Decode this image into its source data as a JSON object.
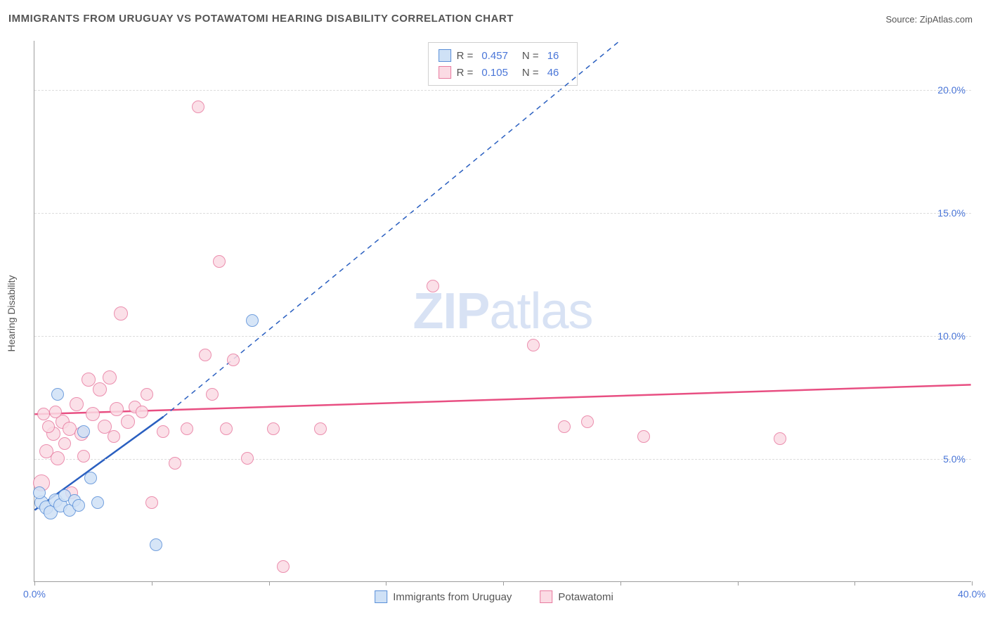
{
  "title": "IMMIGRANTS FROM URUGUAY VS POTAWATOMI HEARING DISABILITY CORRELATION CHART",
  "source_prefix": "Source: ",
  "source": "ZipAtlas.com",
  "watermark_bold": "ZIP",
  "watermark_rest": "atlas",
  "ylabel": "Hearing Disability",
  "chart": {
    "xlim": [
      0,
      40
    ],
    "ylim": [
      0,
      22
    ],
    "xtick_positions": [
      0,
      5,
      10,
      15,
      20,
      25,
      30,
      35,
      40
    ],
    "xtick_labels_shown": {
      "0": "0.0%",
      "40": "40.0%"
    },
    "ytick_positions": [
      5,
      10,
      15,
      20
    ],
    "ytick_labels": [
      "5.0%",
      "10.0%",
      "15.0%",
      "20.0%"
    ],
    "background_color": "#ffffff",
    "grid_color": "#dcdcdc",
    "axis_color": "#9d9d9d",
    "label_color": "#4a76d8",
    "text_color": "#555555",
    "title_fontsize": 15,
    "label_fontsize": 14,
    "series": {
      "uruguay": {
        "label": "Immigrants from Uruguay",
        "fill": "#cfe1f6",
        "stroke": "#5a8fd8",
        "line_color": "#2a5fc0",
        "R": "0.457",
        "N": "16",
        "trend_solid": {
          "x1": 0,
          "y1": 2.9,
          "x2": 5.5,
          "y2": 6.7
        },
        "trend_dashed": {
          "x1": 5.5,
          "y1": 6.7,
          "x2": 25,
          "y2": 22
        },
        "points": [
          {
            "x": 0.3,
            "y": 3.2,
            "r": 10
          },
          {
            "x": 0.5,
            "y": 3.0,
            "r": 10
          },
          {
            "x": 0.7,
            "y": 2.8,
            "r": 10
          },
          {
            "x": 0.9,
            "y": 3.3,
            "r": 10
          },
          {
            "x": 1.1,
            "y": 3.1,
            "r": 10
          },
          {
            "x": 1.3,
            "y": 3.5,
            "r": 9
          },
          {
            "x": 1.5,
            "y": 2.9,
            "r": 9
          },
          {
            "x": 1.7,
            "y": 3.3,
            "r": 9
          },
          {
            "x": 1.9,
            "y": 3.1,
            "r": 9
          },
          {
            "x": 1.0,
            "y": 7.6,
            "r": 9
          },
          {
            "x": 2.1,
            "y": 6.1,
            "r": 9
          },
          {
            "x": 2.4,
            "y": 4.2,
            "r": 9
          },
          {
            "x": 2.7,
            "y": 3.2,
            "r": 9
          },
          {
            "x": 9.3,
            "y": 10.6,
            "r": 9
          },
          {
            "x": 5.2,
            "y": 1.5,
            "r": 9
          },
          {
            "x": 0.2,
            "y": 3.6,
            "r": 9
          }
        ]
      },
      "potawatomi": {
        "label": "Potawatomi",
        "fill": "#fbdbe4",
        "stroke": "#e87ba0",
        "line_color": "#e84f82",
        "R": "0.105",
        "N": "46",
        "trend_solid": {
          "x1": 0,
          "y1": 6.8,
          "x2": 40,
          "y2": 8.0
        },
        "points": [
          {
            "x": 0.3,
            "y": 4.0,
            "r": 12
          },
          {
            "x": 0.5,
            "y": 5.3,
            "r": 10
          },
          {
            "x": 0.8,
            "y": 6.0,
            "r": 10
          },
          {
            "x": 1.0,
            "y": 5.0,
            "r": 10
          },
          {
            "x": 1.2,
            "y": 6.5,
            "r": 10
          },
          {
            "x": 1.5,
            "y": 6.2,
            "r": 10
          },
          {
            "x": 1.8,
            "y": 7.2,
            "r": 10
          },
          {
            "x": 2.0,
            "y": 6.0,
            "r": 10
          },
          {
            "x": 2.3,
            "y": 8.2,
            "r": 10
          },
          {
            "x": 2.5,
            "y": 6.8,
            "r": 10
          },
          {
            "x": 2.8,
            "y": 7.8,
            "r": 10
          },
          {
            "x": 3.0,
            "y": 6.3,
            "r": 10
          },
          {
            "x": 3.2,
            "y": 8.3,
            "r": 10
          },
          {
            "x": 3.5,
            "y": 7.0,
            "r": 10
          },
          {
            "x": 3.7,
            "y": 10.9,
            "r": 10
          },
          {
            "x": 4.0,
            "y": 6.5,
            "r": 10
          },
          {
            "x": 4.3,
            "y": 7.1,
            "r": 9
          },
          {
            "x": 4.8,
            "y": 7.6,
            "r": 9
          },
          {
            "x": 5.0,
            "y": 3.2,
            "r": 9
          },
          {
            "x": 5.5,
            "y": 6.1,
            "r": 9
          },
          {
            "x": 6.0,
            "y": 4.8,
            "r": 9
          },
          {
            "x": 6.5,
            "y": 6.2,
            "r": 9
          },
          {
            "x": 7.0,
            "y": 19.3,
            "r": 9
          },
          {
            "x": 7.3,
            "y": 9.2,
            "r": 9
          },
          {
            "x": 7.6,
            "y": 7.6,
            "r": 9
          },
          {
            "x": 7.9,
            "y": 13.0,
            "r": 9
          },
          {
            "x": 8.2,
            "y": 6.2,
            "r": 9
          },
          {
            "x": 8.5,
            "y": 9.0,
            "r": 9
          },
          {
            "x": 9.1,
            "y": 5.0,
            "r": 9
          },
          {
            "x": 10.2,
            "y": 6.2,
            "r": 9
          },
          {
            "x": 10.6,
            "y": 0.6,
            "r": 9
          },
          {
            "x": 12.2,
            "y": 6.2,
            "r": 9
          },
          {
            "x": 17.0,
            "y": 12.0,
            "r": 9
          },
          {
            "x": 21.3,
            "y": 9.6,
            "r": 9
          },
          {
            "x": 22.6,
            "y": 6.3,
            "r": 9
          },
          {
            "x": 23.6,
            "y": 6.5,
            "r": 9
          },
          {
            "x": 26.0,
            "y": 5.9,
            "r": 9
          },
          {
            "x": 31.8,
            "y": 5.8,
            "r": 9
          },
          {
            "x": 0.4,
            "y": 6.8,
            "r": 9
          },
          {
            "x": 0.6,
            "y": 6.3,
            "r": 9
          },
          {
            "x": 0.9,
            "y": 6.9,
            "r": 9
          },
          {
            "x": 1.3,
            "y": 5.6,
            "r": 9
          },
          {
            "x": 1.6,
            "y": 3.6,
            "r": 9
          },
          {
            "x": 2.1,
            "y": 5.1,
            "r": 9
          },
          {
            "x": 3.4,
            "y": 5.9,
            "r": 9
          },
          {
            "x": 4.6,
            "y": 6.9,
            "r": 9
          }
        ]
      }
    },
    "legend": {
      "R_label": "R =",
      "N_label": "N ="
    }
  }
}
